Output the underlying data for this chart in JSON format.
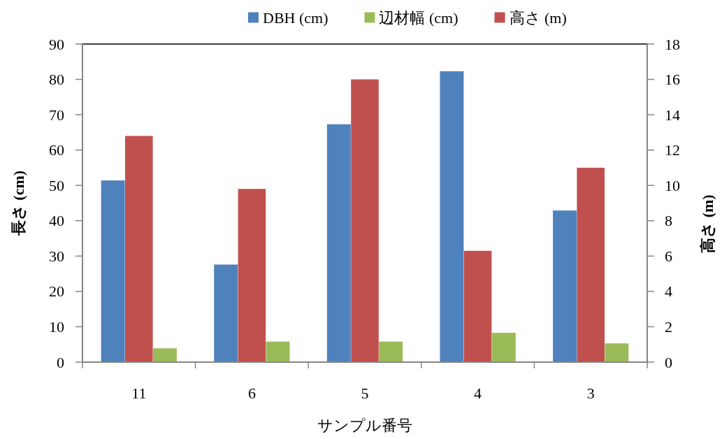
{
  "chart_data": {
    "type": "bar",
    "categories": [
      "11",
      "6",
      "5",
      "4",
      "3"
    ],
    "xlabel": "サンプル番号",
    "ylabel": "長さ (cm)",
    "y2label": "高さ (m)",
    "series": [
      {
        "name": "DBH (cm)",
        "color": "#4f81bd",
        "values": [
          51.4,
          27.6,
          67.3,
          82.3,
          42.9
        ]
      },
      {
        "name": "高さ (m)",
        "color": "#c0504d",
        "axis": "y2",
        "values": [
          12.8,
          9.8,
          16.0,
          6.3,
          11.0
        ]
      },
      {
        "name": "辺材幅 (cm)",
        "color": "#9bbb59",
        "values": [
          3.9,
          5.8,
          5.8,
          8.3,
          5.3
        ]
      }
    ],
    "ylim": [
      0,
      90
    ],
    "yticks": [
      0,
      10,
      20,
      30,
      40,
      50,
      60,
      70,
      80,
      90
    ],
    "y2lim": [
      0,
      18
    ],
    "y2ticks": [
      0,
      2,
      4,
      6,
      8,
      10,
      12,
      14,
      16,
      18
    ],
    "legend": "top",
    "grid": false
  }
}
